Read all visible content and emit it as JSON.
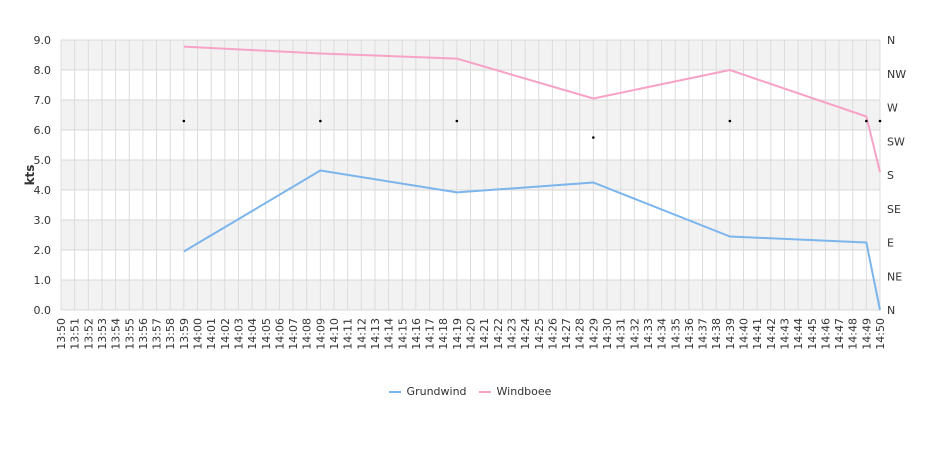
{
  "chart_data": {
    "type": "line",
    "ylabel": "kts",
    "ylim": [
      0,
      9
    ],
    "y_ticks": [
      "0.0",
      "1.0",
      "2.0",
      "3.0",
      "4.0",
      "5.0",
      "6.0",
      "7.0",
      "8.0",
      "9.0"
    ],
    "y2_ticks": [
      "N",
      "NE",
      "E",
      "SE",
      "S",
      "SW",
      "W",
      "NW",
      "N"
    ],
    "x_ticks": [
      "13:50",
      "13:51",
      "13:52",
      "13:53",
      "13:54",
      "13:55",
      "13:56",
      "13:57",
      "13:58",
      "13:59",
      "14:00",
      "14:01",
      "14:02",
      "14:03",
      "14:04",
      "14:05",
      "14:06",
      "14:07",
      "14:08",
      "14:09",
      "14:10",
      "14:11",
      "14:12",
      "14:13",
      "14:14",
      "14:15",
      "14:16",
      "14:17",
      "14:18",
      "14:19",
      "14:20",
      "14:21",
      "14:22",
      "14:23",
      "14:24",
      "14:25",
      "14:26",
      "14:27",
      "14:28",
      "14:29",
      "14:30",
      "14:31",
      "14:32",
      "14:33",
      "14:34",
      "14:35",
      "14:36",
      "14:37",
      "14:38",
      "14:39",
      "14:40",
      "14:41",
      "14:42",
      "14:43",
      "14:44",
      "14:45",
      "14:46",
      "14:47",
      "14:48",
      "14:49",
      "14:50"
    ],
    "grid": true,
    "legend_position": "bottom",
    "series": [
      {
        "name": "Grundwind",
        "color": "#7cb5ec",
        "x": [
          9,
          19,
          29,
          39,
          49,
          59,
          60
        ],
        "values": [
          1.95,
          4.65,
          3.92,
          4.25,
          2.45,
          2.25,
          0.0
        ]
      },
      {
        "name": "Windboee",
        "color": "#f7a3c6",
        "x": [
          9,
          19,
          29,
          39,
          49,
          59,
          60
        ],
        "values": [
          8.78,
          8.55,
          8.38,
          7.05,
          8.0,
          6.45,
          4.6
        ]
      }
    ],
    "direction_points": {
      "x": [
        9,
        19,
        29,
        39,
        49,
        59,
        60
      ],
      "values": [
        6.3,
        6.3,
        6.3,
        5.75,
        6.3,
        6.3,
        6.3
      ]
    }
  }
}
